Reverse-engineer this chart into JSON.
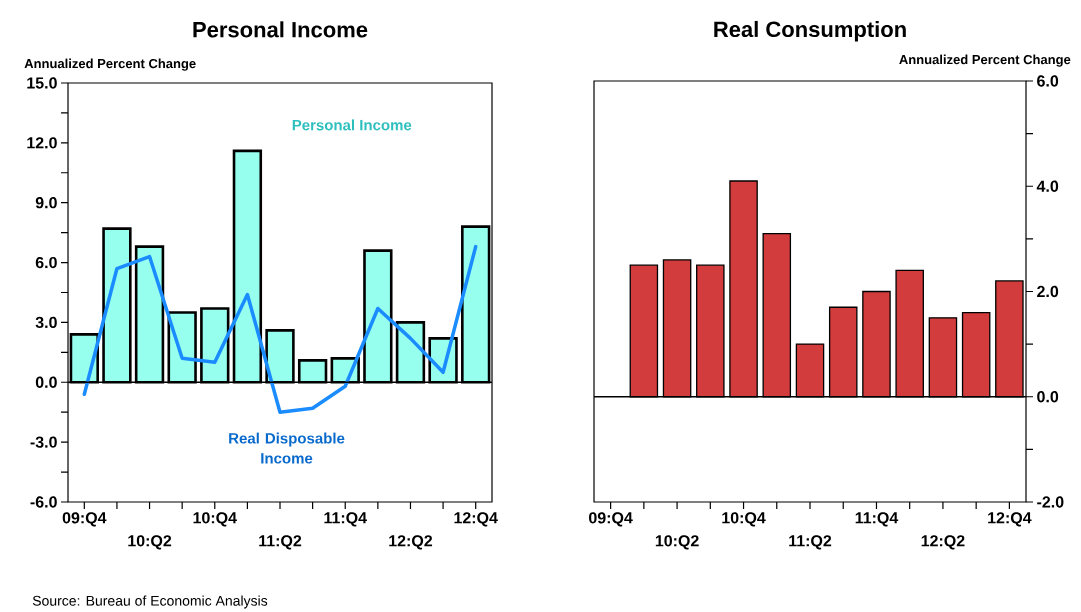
{
  "chart_data": [
    {
      "type": "bar",
      "title": "Personal Income",
      "ylabel": "Annualized Percent Change",
      "categories": [
        "09:Q4",
        null,
        "10:Q2",
        null,
        "10:Q4",
        null,
        "11:Q2",
        null,
        "11:Q4",
        null,
        "12:Q2",
        null,
        "12:Q4"
      ],
      "series": [
        {
          "name": "Personal Income",
          "color": "#96ffee",
          "values": [
            2.4,
            7.7,
            6.8,
            3.5,
            3.7,
            11.6,
            2.6,
            1.1,
            1.2,
            6.6,
            3.0,
            2.2,
            7.8
          ]
        },
        {
          "name": "Real Disposable Income",
          "type": "line",
          "color": "#1a8cff",
          "values": [
            -0.6,
            5.7,
            6.3,
            1.2,
            1.0,
            4.4,
            -1.5,
            -1.3,
            -0.2,
            3.7,
            2.2,
            0.5,
            6.8
          ]
        }
      ],
      "ylim": [
        -6,
        15
      ],
      "yticks": [
        {
          "value": -6,
          "label": "-6.0"
        },
        {
          "value": -4.5,
          "label": null
        },
        {
          "value": -3,
          "label": "-3.0"
        },
        {
          "value": -1.5,
          "label": null
        },
        {
          "value": 0,
          "label": "0.0"
        },
        {
          "value": 1.5,
          "label": null
        },
        {
          "value": 3,
          "label": "3.0"
        },
        {
          "value": 4.5,
          "label": null
        },
        {
          "value": 6,
          "label": "6.0"
        },
        {
          "value": 7.5,
          "label": null
        },
        {
          "value": 9,
          "label": "9.0"
        },
        {
          "value": 10.5,
          "label": null
        },
        {
          "value": 12,
          "label": "12.0"
        },
        {
          "value": 13.5,
          "label": null
        },
        {
          "value": 15,
          "label": "15.0"
        }
      ],
      "ref_lines": [
        {
          "axis": "y",
          "value": 0,
          "color": "#000000"
        }
      ],
      "annotations": [
        "Source: Bureau of Economic Analysis"
      ]
    },
    {
      "type": "bar",
      "title": "Real Consumption",
      "ylabel": "Annualized Percent Change",
      "categories": [
        "09:Q4",
        null,
        "10:Q2",
        null,
        "10:Q4",
        null,
        "11:Q2",
        null,
        "11:Q4",
        null,
        "12:Q2",
        null,
        "12:Q4"
      ],
      "series": [
        {
          "color": "#d33c3c",
          "values": [
            null,
            2.5,
            2.6,
            2.5,
            4.1,
            3.1,
            1.0,
            1.7,
            2.0,
            2.4,
            1.5,
            1.6,
            2.2
          ]
        }
      ],
      "ylim": [
        -2,
        6
      ],
      "yticks": [
        {
          "value": -2,
          "label": "-2.0"
        },
        {
          "value": -1,
          "label": null
        },
        {
          "value": 0,
          "label": "0.0"
        },
        {
          "value": 1,
          "label": null
        },
        {
          "value": 2,
          "label": "2.0"
        },
        {
          "value": 3,
          "label": null
        },
        {
          "value": 4,
          "label": "4.0"
        },
        {
          "value": 5,
          "label": null
        },
        {
          "value": 6,
          "label": "6.0"
        }
      ],
      "ref_lines": [
        {
          "axis": "y",
          "value": 0,
          "color": "#000000"
        }
      ]
    }
  ]
}
